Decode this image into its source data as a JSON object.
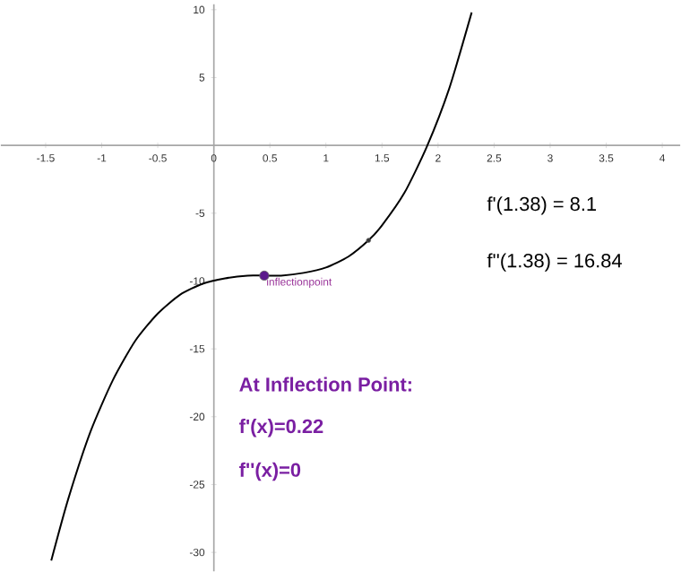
{
  "chart_data": {
    "type": "line",
    "xlim": [
      -1.9,
      4.16
    ],
    "ylim": [
      -31.4,
      10.4
    ],
    "xticks": [
      -1.5,
      -1,
      -0.5,
      0,
      0.5,
      1,
      1.5,
      2,
      2.5,
      3,
      3.5,
      4
    ],
    "yticks": [
      -30,
      -25,
      -20,
      -15,
      -10,
      -5,
      5,
      10
    ],
    "grid": false,
    "series": [
      {
        "color": "#000000",
        "marker": "none",
        "x": [
          -1.45,
          -1.3,
          -1.1,
          -0.9,
          -0.7,
          -0.5,
          -0.3,
          -0.1,
          0.1,
          0.3,
          0.45,
          0.6,
          0.8,
          1.0,
          1.2,
          1.38,
          1.5,
          1.7,
          1.9,
          2.1,
          2.3
        ],
        "values": [
          -30.6,
          -26.1,
          -21.1,
          -17.3,
          -14.4,
          -12.4,
          -11.0,
          -10.2,
          -9.8,
          -9.6,
          -9.6,
          -9.6,
          -9.4,
          -9.0,
          -8.2,
          -7.0,
          -5.9,
          -3.5,
          -0.1,
          4.2,
          9.8
        ]
      },
      {
        "type": "scatter",
        "color": "#5b1a8c",
        "marker": "circle",
        "x": [
          0.45
        ],
        "values": [
          -9.6
        ]
      },
      {
        "type": "scatter",
        "color": "#333333",
        "marker": "circle",
        "x": [
          1.38
        ],
        "values": [
          -7.0
        ]
      }
    ],
    "annotations": [
      {
        "text": "inflectionpoint",
        "x": 0.45,
        "y": -9.6
      },
      "f'(1.38) = 8.1",
      "f''(1.38) = 16.84",
      "At Inflection Point:",
      "f'(x)=0.22",
      "f''(x)=0"
    ]
  }
}
